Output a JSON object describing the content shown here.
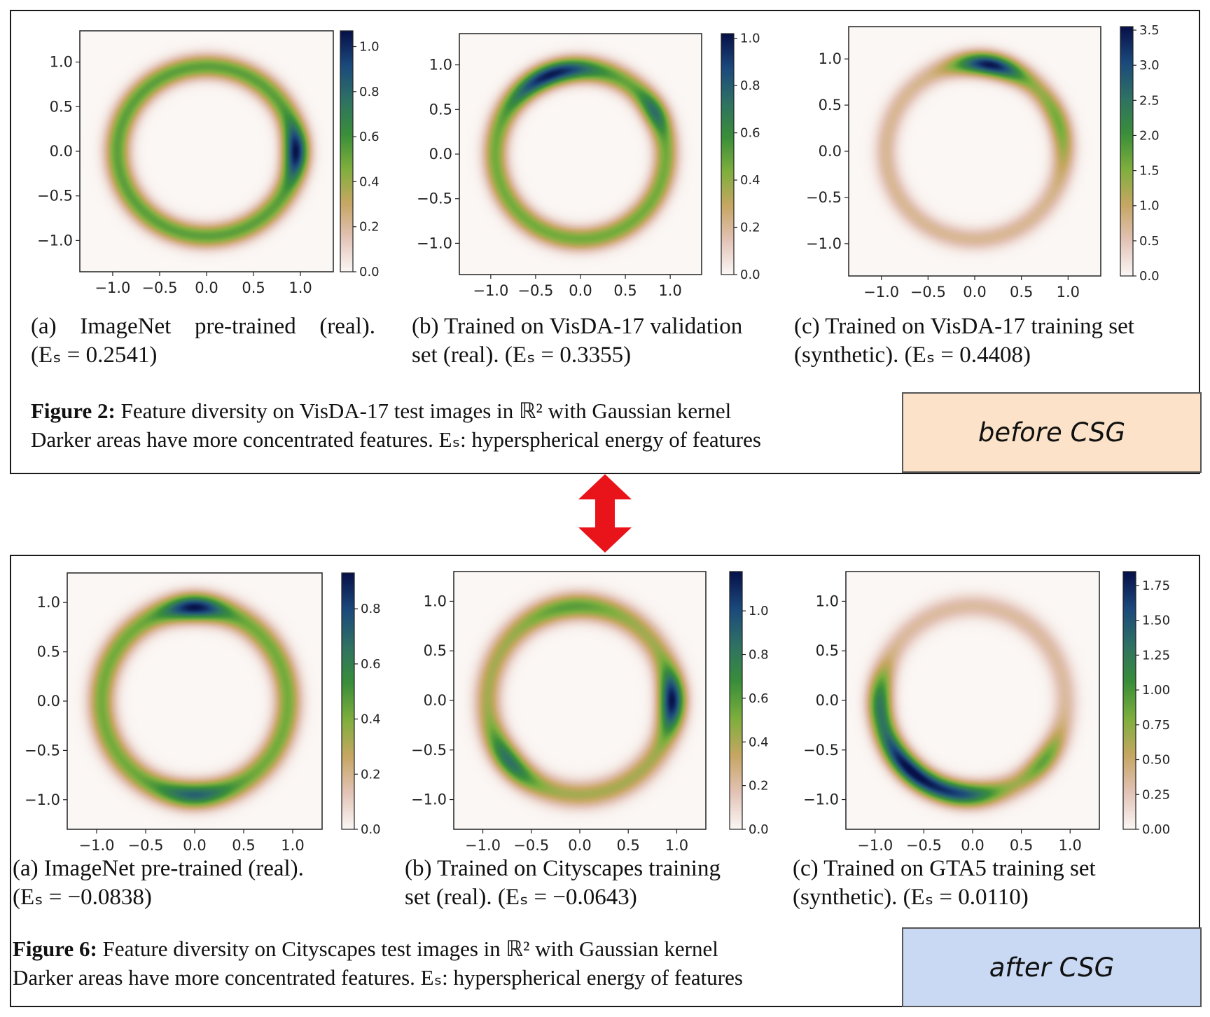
{
  "colors": {
    "cmap": [
      "#fbf7f5",
      "#e3c3b6",
      "#c7a763",
      "#7faf3d",
      "#3a8f3a",
      "#2f7264",
      "#1c4a7d",
      "#08124a"
    ],
    "arrow": "#e8141a",
    "before_box": "#fbe2c8",
    "after_box": "#c9d9f4"
  },
  "top": {
    "figure_title": "Figure 2:",
    "figure_text_1": "Feature diversity on VisDA-17 test images in ℝ² with Gaussian kernel",
    "figure_text_2": "Darker areas have more concentrated features. Eₛ: hyperspherical energy of features",
    "box_label": "before CSG",
    "plots": [
      {
        "caption_1": "(a) ImageNet pre-trained (real).",
        "caption_2": "(Eₛ = 0.2541)"
      },
      {
        "caption_1": "(b) Trained on VisDA-17 validation",
        "caption_2": "set (real). (Eₛ = 0.3355)"
      },
      {
        "caption_1": "(c) Trained on VisDA-17 training set",
        "caption_2": "(synthetic). (Eₛ = 0.4408)"
      }
    ]
  },
  "bottom": {
    "figure_title": "Figure 6:",
    "figure_text_1": "Feature diversity on Cityscapes test images in ℝ² with Gaussian kernel",
    "figure_text_2": "Darker areas have more concentrated features. Eₛ: hyperspherical energy of features",
    "box_label": "after CSG",
    "plots": [
      {
        "caption_1": "(a) ImageNet pre-trained (real).",
        "caption_2": "(Eₛ = −0.0838)"
      },
      {
        "caption_1": "(b) Trained on Cityscapes training",
        "caption_2": "set (real). (Eₛ = −0.0643)"
      },
      {
        "caption_1": "(c) Trained on GTA5 training set",
        "caption_2": "(synthetic). (Eₛ = 0.0110)"
      }
    ]
  },
  "chart_data": [
    {
      "type": "heatmap",
      "panel": "top-a",
      "xticks": [
        "−1.0",
        "−0.5",
        "0.0",
        "0.5",
        "1.0"
      ],
      "yticks": [
        "1.0",
        "0.5",
        "0.0",
        "−0.5",
        "−1.0"
      ],
      "xlim": [
        -1.35,
        1.35
      ],
      "ylim": [
        -1.35,
        1.35
      ],
      "colorbar": {
        "range": [
          0,
          1.07
        ],
        "ticks": [
          "0.0",
          "0.2",
          "0.4",
          "0.6",
          "0.8",
          "1.0"
        ]
      },
      "ring": {
        "radius": 0.95,
        "width": 0.13
      },
      "base_density": 0.5,
      "peaks": [
        {
          "angle_deg": 0,
          "value": 1.07,
          "spread_deg": 18
        }
      ]
    },
    {
      "type": "heatmap",
      "panel": "top-b",
      "xticks": [
        "−1.0",
        "−0.5",
        "0.0",
        "0.5",
        "1.0"
      ],
      "yticks": [
        "1.0",
        "0.5",
        "0.0",
        "−0.5",
        "−1.0"
      ],
      "xlim": [
        -1.35,
        1.35
      ],
      "ylim": [
        -1.35,
        1.35
      ],
      "colorbar": {
        "range": [
          0,
          1.02
        ],
        "ticks": [
          "0.0",
          "0.2",
          "0.4",
          "0.6",
          "0.8",
          "1.0"
        ]
      },
      "ring": {
        "radius": 0.95,
        "width": 0.13
      },
      "base_density": 0.45,
      "peaks": [
        {
          "angle_deg": 110,
          "value": 1.0,
          "spread_deg": 30
        },
        {
          "angle_deg": 30,
          "value": 0.75,
          "spread_deg": 15
        }
      ]
    },
    {
      "type": "heatmap",
      "panel": "top-c",
      "xticks": [
        "−1.0",
        "−0.5",
        "0.0",
        "0.5",
        "1.0"
      ],
      "yticks": [
        "1.0",
        "0.5",
        "0.0",
        "−0.5",
        "−1.0"
      ],
      "xlim": [
        -1.35,
        1.35
      ],
      "ylim": [
        -1.35,
        1.35
      ],
      "colorbar": {
        "range": [
          0,
          3.55
        ],
        "ticks": [
          "0.0",
          "0.5",
          "1.0",
          "1.5",
          "2.0",
          "2.5",
          "3.0",
          "3.5"
        ]
      },
      "ring": {
        "radius": 0.95,
        "width": 0.12
      },
      "base_density": 0.2,
      "peaks": [
        {
          "angle_deg": 80,
          "value": 3.5,
          "spread_deg": 22
        },
        {
          "angle_deg": 20,
          "value": 1.6,
          "spread_deg": 30
        },
        {
          "angle_deg": -30,
          "value": 0.7,
          "spread_deg": 25
        }
      ]
    },
    {
      "type": "heatmap",
      "panel": "bottom-a",
      "xticks": [
        "−1.0",
        "−0.5",
        "0.0",
        "0.5",
        "1.0"
      ],
      "yticks": [
        "1.0",
        "0.5",
        "0.0",
        "−0.5",
        "−1.0"
      ],
      "xlim": [
        -1.3,
        1.3
      ],
      "ylim": [
        -1.3,
        1.3
      ],
      "colorbar": {
        "range": [
          0,
          0.93
        ],
        "ticks": [
          "0.0",
          "0.2",
          "0.4",
          "0.6",
          "0.8"
        ]
      },
      "ring": {
        "radius": 0.95,
        "width": 0.13
      },
      "base_density": 0.45,
      "peaks": [
        {
          "angle_deg": 90,
          "value": 0.93,
          "spread_deg": 18
        },
        {
          "angle_deg": -90,
          "value": 0.72,
          "spread_deg": 22
        }
      ]
    },
    {
      "type": "heatmap",
      "panel": "bottom-b",
      "xticks": [
        "−1.0",
        "−0.5",
        "0.0",
        "0.5",
        "1.0"
      ],
      "yticks": [
        "1.0",
        "0.5",
        "0.0",
        "−0.5",
        "−1.0"
      ],
      "xlim": [
        -1.3,
        1.3
      ],
      "ylim": [
        -1.3,
        1.3
      ],
      "colorbar": {
        "range": [
          0,
          1.18
        ],
        "ticks": [
          "0.0",
          "0.2",
          "0.4",
          "0.6",
          "0.8",
          "1.0"
        ]
      },
      "ring": {
        "radius": 0.95,
        "width": 0.13
      },
      "base_density": 0.35,
      "peaks": [
        {
          "angle_deg": 0,
          "value": 1.18,
          "spread_deg": 18
        },
        {
          "angle_deg": -140,
          "value": 0.85,
          "spread_deg": 20
        },
        {
          "angle_deg": 95,
          "value": 0.6,
          "spread_deg": 30
        }
      ]
    },
    {
      "type": "heatmap",
      "panel": "bottom-c",
      "xticks": [
        "−1.0",
        "−0.5",
        "0.0",
        "0.5",
        "1.0"
      ],
      "yticks": [
        "1.0",
        "0.5",
        "0.0",
        "−0.5",
        "−1.0"
      ],
      "xlim": [
        -1.3,
        1.3
      ],
      "ylim": [
        -1.3,
        1.3
      ],
      "colorbar": {
        "range": [
          0,
          1.85
        ],
        "ticks": [
          "0.00",
          "0.25",
          "0.50",
          "0.75",
          "1.00",
          "1.25",
          "1.50",
          "1.75"
        ]
      },
      "ring": {
        "radius": 0.95,
        "width": 0.12
      },
      "base_density": 0.18,
      "peaks": [
        {
          "angle_deg": -135,
          "value": 1.8,
          "spread_deg": 30
        },
        {
          "angle_deg": -95,
          "value": 1.3,
          "spread_deg": 25
        },
        {
          "angle_deg": 180,
          "value": 1.1,
          "spread_deg": 20
        },
        {
          "angle_deg": -40,
          "value": 0.9,
          "spread_deg": 20
        }
      ]
    }
  ]
}
